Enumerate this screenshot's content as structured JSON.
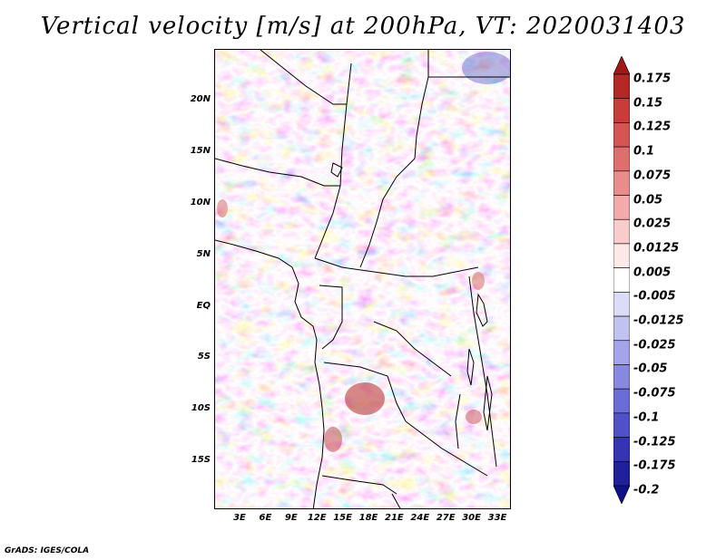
{
  "title": "Vertical velocity [m/s] at 200hPa, VT: 2020031403",
  "footer": "GrADS: IGES/COLA",
  "lat_labels": [
    "20N",
    "15N",
    "10N",
    "5N",
    "EQ",
    "5S",
    "10S",
    "15S"
  ],
  "lon_labels": [
    "3E",
    "6E",
    "9E",
    "12E",
    "15E",
    "18E",
    "21E",
    "24E",
    "27E",
    "30E",
    "33E"
  ],
  "colorbar": {
    "levels": [
      "0.175",
      "0.15",
      "0.125",
      "0.1",
      "0.075",
      "0.05",
      "0.025",
      "0.0125",
      "0.005",
      "-0.005",
      "-0.0125",
      "-0.025",
      "-0.05",
      "-0.075",
      "-0.1",
      "-0.125",
      "-0.175",
      "-0.2"
    ],
    "colors": [
      "#a01818",
      "#b52828",
      "#c83c3c",
      "#d65454",
      "#e06e6e",
      "#ea8c8c",
      "#f2aaaa",
      "#f8cccc",
      "#fde8e8",
      "#ffffff",
      "#dcdcf6",
      "#c2c2f0",
      "#a4a4ea",
      "#8888e2",
      "#6c6cd8",
      "#5050c8",
      "#3434b4",
      "#20209c",
      "#101088"
    ]
  }
}
